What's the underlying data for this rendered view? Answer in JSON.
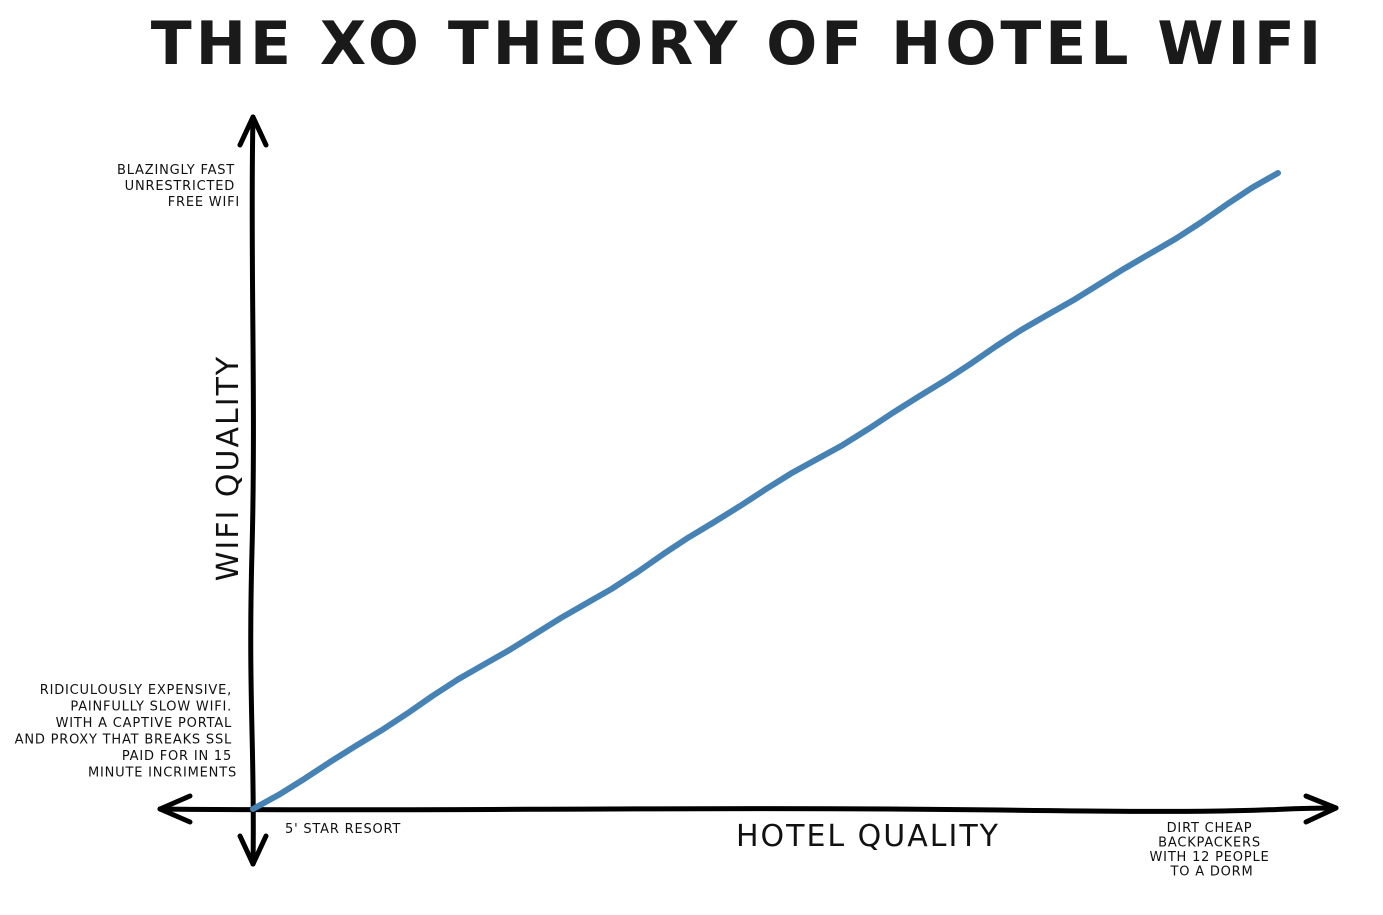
{
  "chart_data": {
    "type": "line",
    "title": "THE XO THEORY OF HOTEL WIFI",
    "xlabel": "HOTEL QUALITY",
    "ylabel": "WIFI QUALITY",
    "x": [
      0,
      1
    ],
    "series": [
      {
        "values": [
          0,
          1
        ],
        "color": "#4682b4"
      }
    ],
    "xlim": [
      0,
      1
    ],
    "ylim": [
      0,
      1
    ],
    "grid": false,
    "annotations": {
      "x_low": [
        "5' STAR RESORT"
      ],
      "x_high": [
        "DIRT CHEAP",
        "BACKPACKERS",
        "WITH 12 PEOPLE",
        "TO A DORM"
      ],
      "y_high": [
        "BLAZINGLY FAST",
        "UNRESTRICTED",
        "FREE WIFI"
      ],
      "y_low": [
        "RIDICULOUSLY EXPENSIVE,",
        "PAINFULLY SLOW WIFI.",
        "WITH A CAPTIVE PORTAL",
        "AND PROXY THAT BREAKS SSL",
        "PAID FOR IN 15",
        "MINUTE INCRIMENTS"
      ]
    },
    "colors": {
      "axis": "#000000",
      "line": "#4682b4"
    }
  }
}
